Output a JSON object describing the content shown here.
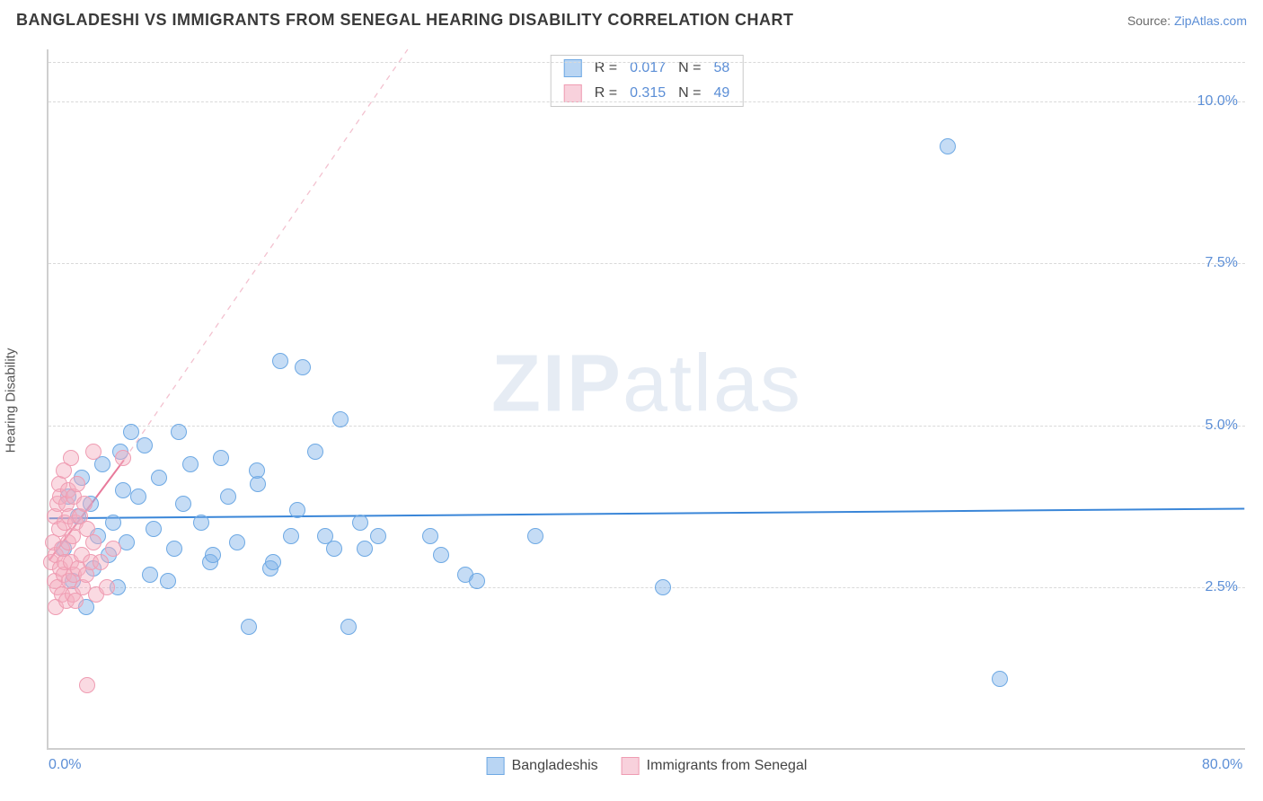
{
  "title": "BANGLADESHI VS IMMIGRANTS FROM SENEGAL HEARING DISABILITY CORRELATION CHART",
  "source_prefix": "Source: ",
  "source_name": "ZipAtlas.com",
  "watermark_bold": "ZIP",
  "watermark_light": "atlas",
  "y_axis_label": "Hearing Disability",
  "chart": {
    "type": "scatter",
    "background_color": "#ffffff",
    "grid_color": "#d9d9d9",
    "axis_color": "#cfcfcf",
    "xlim": [
      0,
      80
    ],
    "ylim": [
      0,
      10.8
    ],
    "x_ticks": [
      {
        "value": 0,
        "label": "0.0%"
      },
      {
        "value": 80,
        "label": "80.0%"
      }
    ],
    "y_ticks": [
      {
        "value": 2.5,
        "label": "2.5%"
      },
      {
        "value": 5.0,
        "label": "5.0%"
      },
      {
        "value": 7.5,
        "label": "7.5%"
      },
      {
        "value": 10.0,
        "label": "10.0%"
      }
    ],
    "legend_top": [
      {
        "color": "blue",
        "r_label": "R =",
        "r_value": "0.017",
        "n_label": "N =",
        "n_value": "58"
      },
      {
        "color": "pink",
        "r_label": "R =",
        "r_value": "0.315",
        "n_label": "N =",
        "n_value": "49"
      }
    ],
    "legend_bottom": [
      {
        "color": "blue",
        "label": "Bangladeshis"
      },
      {
        "color": "pink",
        "label": "Immigrants from Senegal"
      }
    ],
    "series": [
      {
        "name": "Bangladeshis",
        "color": "blue",
        "marker_fill": "#7fb2e9",
        "marker_stroke": "#6ea9e4",
        "trend_line": {
          "x1": 0,
          "y1": 3.55,
          "x2": 80,
          "y2": 3.7,
          "stroke": "#3a86d8",
          "width": 2,
          "dash": "none"
        },
        "points": [
          [
            1.0,
            3.1
          ],
          [
            1.3,
            3.9
          ],
          [
            1.6,
            2.6
          ],
          [
            2.0,
            3.6
          ],
          [
            2.2,
            4.2
          ],
          [
            2.5,
            2.2
          ],
          [
            2.8,
            3.8
          ],
          [
            3.0,
            2.8
          ],
          [
            3.3,
            3.3
          ],
          [
            3.6,
            4.4
          ],
          [
            4.0,
            3.0
          ],
          [
            4.3,
            3.5
          ],
          [
            4.6,
            2.5
          ],
          [
            5.0,
            4.0
          ],
          [
            5.2,
            3.2
          ],
          [
            5.5,
            4.9
          ],
          [
            6.0,
            3.9
          ],
          [
            6.4,
            4.7
          ],
          [
            7.0,
            3.4
          ],
          [
            7.4,
            4.2
          ],
          [
            8.0,
            2.6
          ],
          [
            8.4,
            3.1
          ],
          [
            9.0,
            3.8
          ],
          [
            9.5,
            4.4
          ],
          [
            10.2,
            3.5
          ],
          [
            10.8,
            2.9
          ],
          [
            11.5,
            4.5
          ],
          [
            12.0,
            3.9
          ],
          [
            12.6,
            3.2
          ],
          [
            13.4,
            1.9
          ],
          [
            14.0,
            4.1
          ],
          [
            14.8,
            2.8
          ],
          [
            15.5,
            6.0
          ],
          [
            16.2,
            3.3
          ],
          [
            17.0,
            5.9
          ],
          [
            17.8,
            4.6
          ],
          [
            18.5,
            3.3
          ],
          [
            19.1,
            3.1
          ],
          [
            20.0,
            1.9
          ],
          [
            20.8,
            3.5
          ],
          [
            19.5,
            5.1
          ],
          [
            22.0,
            3.3
          ],
          [
            25.5,
            3.3
          ],
          [
            26.2,
            3.0
          ],
          [
            27.8,
            2.7
          ],
          [
            28.6,
            2.6
          ],
          [
            32.5,
            3.3
          ],
          [
            41.0,
            2.5
          ],
          [
            60.0,
            9.3
          ],
          [
            63.5,
            1.1
          ],
          [
            4.8,
            4.6
          ],
          [
            6.8,
            2.7
          ],
          [
            8.7,
            4.9
          ],
          [
            11.0,
            3.0
          ],
          [
            13.9,
            4.3
          ],
          [
            15.0,
            2.9
          ],
          [
            16.6,
            3.7
          ],
          [
            21.1,
            3.1
          ]
        ]
      },
      {
        "name": "Immigrants from Senegal",
        "color": "pink",
        "marker_fill": "#f3acbf",
        "marker_stroke": "#ef9cb2",
        "trend_line": {
          "x1": 0,
          "y1": 2.9,
          "x2": 5.0,
          "y2": 4.45,
          "stroke": "#e87a9b",
          "width": 2,
          "dash": "none"
        },
        "trend_line_ext": {
          "x1": 5.0,
          "y1": 4.45,
          "x2": 24.0,
          "y2": 10.8,
          "stroke": "#f3c1cf",
          "width": 1.3,
          "dash": "6,6"
        },
        "points": [
          [
            0.2,
            2.9
          ],
          [
            0.3,
            3.2
          ],
          [
            0.4,
            2.6
          ],
          [
            0.4,
            3.6
          ],
          [
            0.5,
            2.2
          ],
          [
            0.5,
            3.0
          ],
          [
            0.6,
            3.8
          ],
          [
            0.6,
            2.5
          ],
          [
            0.7,
            3.4
          ],
          [
            0.7,
            4.1
          ],
          [
            0.8,
            2.8
          ],
          [
            0.8,
            3.9
          ],
          [
            0.9,
            2.4
          ],
          [
            0.9,
            3.1
          ],
          [
            1.0,
            4.3
          ],
          [
            1.0,
            2.7
          ],
          [
            1.1,
            3.5
          ],
          [
            1.1,
            2.9
          ],
          [
            1.2,
            3.8
          ],
          [
            1.2,
            2.3
          ],
          [
            1.3,
            4.0
          ],
          [
            1.3,
            3.2
          ],
          [
            1.4,
            2.6
          ],
          [
            1.4,
            3.6
          ],
          [
            1.5,
            4.5
          ],
          [
            1.5,
            2.9
          ],
          [
            1.6,
            3.3
          ],
          [
            1.6,
            2.4
          ],
          [
            1.7,
            3.9
          ],
          [
            1.7,
            2.7
          ],
          [
            1.8,
            3.5
          ],
          [
            1.8,
            2.3
          ],
          [
            1.9,
            4.1
          ],
          [
            2.0,
            2.8
          ],
          [
            2.1,
            3.6
          ],
          [
            2.2,
            3.0
          ],
          [
            2.3,
            2.5
          ],
          [
            2.4,
            3.8
          ],
          [
            2.5,
            2.7
          ],
          [
            2.6,
            3.4
          ],
          [
            2.8,
            2.9
          ],
          [
            3.0,
            3.2
          ],
          [
            3.2,
            2.4
          ],
          [
            3.5,
            2.9
          ],
          [
            3.9,
            2.5
          ],
          [
            4.3,
            3.1
          ],
          [
            3.0,
            4.6
          ],
          [
            5.0,
            4.5
          ],
          [
            2.6,
            1.0
          ]
        ]
      }
    ]
  }
}
